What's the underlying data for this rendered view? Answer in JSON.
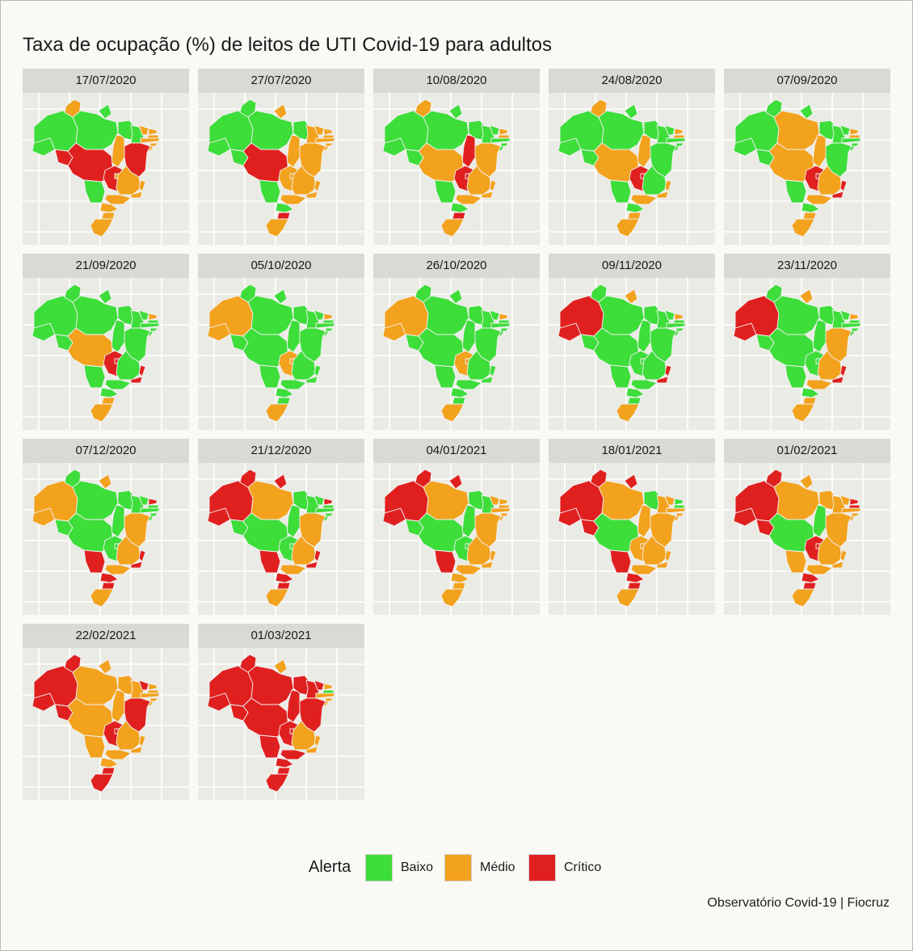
{
  "title": "Taxa de ocupação (%) de leitos de UTI Covid-19 para adultos",
  "caption": "Observatório Covid-19 | Fiocruz",
  "legend": {
    "title": "Alerta",
    "items": [
      {
        "label": "Baixo",
        "color": "#3ddd3a"
      },
      {
        "label": "Médio",
        "color": "#f3a21d"
      },
      {
        "label": "Crítico",
        "color": "#e0201f"
      }
    ]
  },
  "colors": {
    "baixo": "#3ddd3a",
    "medio": "#f3a21d",
    "critico": "#e0201f",
    "panel_bg": "#ebebe6",
    "strip_bg": "#d9d9d5",
    "grid": "#ffffff"
  },
  "panels": [
    {
      "date": "17/07/2020",
      "states": {
        "AC": "baixo",
        "AM": "baixo",
        "RR": "medio",
        "AP": "baixo",
        "PA": "baixo",
        "TO": "medio",
        "MA": "baixo",
        "PI": "baixo",
        "CE": "medio",
        "RN": "medio",
        "PB": "medio",
        "PE": "medio",
        "AL": "medio",
        "SE": "medio",
        "BA": "critico",
        "RO": "critico",
        "MT": "critico",
        "MS": "baixo",
        "GO": "critico",
        "DF": "medio",
        "MG": "medio",
        "ES": "medio",
        "RJ": "medio",
        "SP": "medio",
        "PR": "medio",
        "SC": "medio",
        "RS": "medio"
      }
    },
    {
      "date": "27/07/2020",
      "states": {
        "AC": "baixo",
        "AM": "baixo",
        "RR": "baixo",
        "AP": "medio",
        "PA": "baixo",
        "TO": "medio",
        "MA": "baixo",
        "PI": "medio",
        "CE": "medio",
        "RN": "medio",
        "PB": "medio",
        "PE": "medio",
        "AL": "medio",
        "SE": "medio",
        "BA": "medio",
        "RO": "baixo",
        "MT": "critico",
        "MS": "baixo",
        "GO": "medio",
        "DF": "medio",
        "MG": "medio",
        "ES": "medio",
        "RJ": "medio",
        "SP": "medio",
        "PR": "baixo",
        "SC": "critico",
        "RS": "medio"
      }
    },
    {
      "date": "10/08/2020",
      "states": {
        "AC": "baixo",
        "AM": "baixo",
        "RR": "medio",
        "AP": "baixo",
        "PA": "baixo",
        "TO": "critico",
        "MA": "baixo",
        "PI": "baixo",
        "CE": "baixo",
        "RN": "medio",
        "PB": "medio",
        "PE": "baixo",
        "AL": "baixo",
        "SE": "baixo",
        "BA": "medio",
        "RO": "baixo",
        "MT": "medio",
        "MS": "baixo",
        "GO": "critico",
        "DF": "critico",
        "MG": "medio",
        "ES": "medio",
        "RJ": "medio",
        "SP": "medio",
        "PR": "baixo",
        "SC": "critico",
        "RS": "medio"
      }
    },
    {
      "date": "24/08/2020",
      "states": {
        "AC": "baixo",
        "AM": "baixo",
        "RR": "medio",
        "AP": "baixo",
        "PA": "baixo",
        "TO": "medio",
        "MA": "baixo",
        "PI": "baixo",
        "CE": "baixo",
        "RN": "medio",
        "PB": "medio",
        "PE": "baixo",
        "AL": "baixo",
        "SE": "baixo",
        "BA": "baixo",
        "RO": "baixo",
        "MT": "medio",
        "MS": "baixo",
        "GO": "critico",
        "DF": "critico",
        "MG": "baixo",
        "ES": "medio",
        "RJ": "medio",
        "SP": "medio",
        "PR": "baixo",
        "SC": "medio",
        "RS": "medio"
      }
    },
    {
      "date": "07/09/2020",
      "states": {
        "AC": "baixo",
        "AM": "baixo",
        "RR": "baixo",
        "AP": "baixo",
        "PA": "medio",
        "TO": "medio",
        "MA": "baixo",
        "PI": "baixo",
        "CE": "baixo",
        "RN": "medio",
        "PB": "medio",
        "PE": "baixo",
        "AL": "baixo",
        "SE": "baixo",
        "BA": "baixo",
        "RO": "baixo",
        "MT": "medio",
        "MS": "baixo",
        "GO": "critico",
        "DF": "critico",
        "MG": "medio",
        "ES": "critico",
        "RJ": "critico",
        "SP": "medio",
        "PR": "baixo",
        "SC": "medio",
        "RS": "medio"
      }
    },
    {
      "date": "21/09/2020",
      "states": {
        "AC": "baixo",
        "AM": "baixo",
        "RR": "baixo",
        "AP": "baixo",
        "PA": "baixo",
        "TO": "baixo",
        "MA": "baixo",
        "PI": "baixo",
        "CE": "baixo",
        "RN": "medio",
        "PB": "baixo",
        "PE": "baixo",
        "AL": "baixo",
        "SE": "baixo",
        "BA": "baixo",
        "RO": "baixo",
        "MT": "medio",
        "MS": "baixo",
        "GO": "critico",
        "DF": "critico",
        "MG": "baixo",
        "ES": "critico",
        "RJ": "critico",
        "SP": "baixo",
        "PR": "baixo",
        "SC": "medio",
        "RS": "medio"
      }
    },
    {
      "date": "05/10/2020",
      "states": {
        "AC": "medio",
        "AM": "medio",
        "RR": "baixo",
        "AP": "baixo",
        "PA": "baixo",
        "TO": "baixo",
        "MA": "baixo",
        "PI": "baixo",
        "CE": "baixo",
        "RN": "medio",
        "PB": "baixo",
        "PE": "baixo",
        "AL": "baixo",
        "SE": "baixo",
        "BA": "baixo",
        "RO": "baixo",
        "MT": "baixo",
        "MS": "baixo",
        "GO": "medio",
        "DF": "medio",
        "MG": "baixo",
        "ES": "baixo",
        "RJ": "baixo",
        "SP": "baixo",
        "PR": "baixo",
        "SC": "baixo",
        "RS": "medio"
      }
    },
    {
      "date": "26/10/2020",
      "states": {
        "AC": "medio",
        "AM": "medio",
        "RR": "baixo",
        "AP": "baixo",
        "PA": "baixo",
        "TO": "baixo",
        "MA": "baixo",
        "PI": "baixo",
        "CE": "baixo",
        "RN": "medio",
        "PB": "baixo",
        "PE": "baixo",
        "AL": "baixo",
        "SE": "baixo",
        "BA": "baixo",
        "RO": "baixo",
        "MT": "baixo",
        "MS": "baixo",
        "GO": "medio",
        "DF": "medio",
        "MG": "baixo",
        "ES": "baixo",
        "RJ": "baixo",
        "SP": "baixo",
        "PR": "baixo",
        "SC": "baixo",
        "RS": "medio"
      }
    },
    {
      "date": "09/11/2020",
      "states": {
        "AC": "critico",
        "AM": "critico",
        "RR": "baixo",
        "AP": "medio",
        "PA": "baixo",
        "TO": "baixo",
        "MA": "baixo",
        "PI": "baixo",
        "CE": "baixo",
        "RN": "medio",
        "PB": "baixo",
        "PE": "baixo",
        "AL": "baixo",
        "SE": "baixo",
        "BA": "baixo",
        "RO": "baixo",
        "MT": "baixo",
        "MS": "baixo",
        "GO": "baixo",
        "DF": "baixo",
        "MG": "baixo",
        "ES": "critico",
        "RJ": "critico",
        "SP": "baixo",
        "PR": "baixo",
        "SC": "baixo",
        "RS": "medio"
      }
    },
    {
      "date": "23/11/2020",
      "states": {
        "AC": "critico",
        "AM": "critico",
        "RR": "baixo",
        "AP": "medio",
        "PA": "baixo",
        "TO": "baixo",
        "MA": "baixo",
        "PI": "baixo",
        "CE": "baixo",
        "RN": "medio",
        "PB": "baixo",
        "PE": "baixo",
        "AL": "baixo",
        "SE": "baixo",
        "BA": "medio",
        "RO": "baixo",
        "MT": "baixo",
        "MS": "baixo",
        "GO": "baixo",
        "DF": "baixo",
        "MG": "medio",
        "ES": "critico",
        "RJ": "critico",
        "SP": "medio",
        "PR": "baixo",
        "SC": "medio",
        "RS": "medio"
      }
    },
    {
      "date": "07/12/2020",
      "states": {
        "AC": "medio",
        "AM": "medio",
        "RR": "baixo",
        "AP": "medio",
        "PA": "baixo",
        "TO": "baixo",
        "MA": "baixo",
        "PI": "baixo",
        "CE": "baixo",
        "RN": "critico",
        "PB": "baixo",
        "PE": "baixo",
        "AL": "baixo",
        "SE": "baixo",
        "BA": "medio",
        "RO": "baixo",
        "MT": "baixo",
        "MS": "critico",
        "GO": "baixo",
        "DF": "baixo",
        "MG": "medio",
        "ES": "critico",
        "RJ": "critico",
        "SP": "medio",
        "PR": "critico",
        "SC": "critico",
        "RS": "medio"
      }
    },
    {
      "date": "21/12/2020",
      "states": {
        "AC": "critico",
        "AM": "critico",
        "RR": "critico",
        "AP": "critico",
        "PA": "medio",
        "TO": "baixo",
        "MA": "baixo",
        "PI": "baixo",
        "CE": "baixo",
        "RN": "critico",
        "PB": "baixo",
        "PE": "baixo",
        "AL": "baixo",
        "SE": "baixo",
        "BA": "medio",
        "RO": "baixo",
        "MT": "baixo",
        "MS": "critico",
        "GO": "baixo",
        "DF": "baixo",
        "MG": "medio",
        "ES": "critico",
        "RJ": "critico",
        "SP": "medio",
        "PR": "critico",
        "SC": "critico",
        "RS": "medio"
      }
    },
    {
      "date": "04/01/2021",
      "states": {
        "AC": "critico",
        "AM": "critico",
        "RR": "critico",
        "AP": "critico",
        "PA": "medio",
        "TO": "baixo",
        "MA": "baixo",
        "PI": "baixo",
        "CE": "medio",
        "RN": "medio",
        "PB": "medio",
        "PE": "medio",
        "AL": "medio",
        "SE": "medio",
        "BA": "medio",
        "RO": "baixo",
        "MT": "baixo",
        "MS": "critico",
        "GO": "baixo",
        "DF": "baixo",
        "MG": "medio",
        "ES": "medio",
        "RJ": "medio",
        "SP": "medio",
        "PR": "medio",
        "SC": "medio",
        "RS": "medio"
      }
    },
    {
      "date": "18/01/2021",
      "states": {
        "AC": "critico",
        "AM": "critico",
        "RR": "critico",
        "AP": "critico",
        "PA": "medio",
        "TO": "medio",
        "MA": "baixo",
        "PI": "medio",
        "CE": "medio",
        "RN": "baixo",
        "PB": "baixo",
        "PE": "medio",
        "AL": "medio",
        "SE": "medio",
        "BA": "medio",
        "RO": "critico",
        "MT": "baixo",
        "MS": "critico",
        "GO": "medio",
        "DF": "medio",
        "MG": "medio",
        "ES": "medio",
        "RJ": "medio",
        "SP": "medio",
        "PR": "critico",
        "SC": "critico",
        "RS": "medio"
      }
    },
    {
      "date": "01/02/2021",
      "states": {
        "AC": "critico",
        "AM": "critico",
        "RR": "critico",
        "AP": "medio",
        "PA": "medio",
        "TO": "baixo",
        "MA": "medio",
        "PI": "medio",
        "CE": "medio",
        "RN": "critico",
        "PB": "critico",
        "PE": "medio",
        "AL": "medio",
        "SE": "medio",
        "BA": "medio",
        "RO": "critico",
        "MT": "baixo",
        "MS": "medio",
        "GO": "critico",
        "DF": "critico",
        "MG": "medio",
        "ES": "medio",
        "RJ": "medio",
        "SP": "medio",
        "PR": "critico",
        "SC": "critico",
        "RS": "medio"
      }
    },
    {
      "date": "22/02/2021",
      "states": {
        "AC": "critico",
        "AM": "critico",
        "RR": "critico",
        "AP": "medio",
        "PA": "medio",
        "TO": "medio",
        "MA": "medio",
        "PI": "medio",
        "CE": "critico",
        "RN": "medio",
        "PB": "medio",
        "PE": "medio",
        "AL": "medio",
        "SE": "medio",
        "BA": "critico",
        "RO": "critico",
        "MT": "medio",
        "MS": "medio",
        "GO": "critico",
        "DF": "critico",
        "MG": "medio",
        "ES": "medio",
        "RJ": "medio",
        "SP": "medio",
        "PR": "medio",
        "SC": "critico",
        "RS": "critico"
      }
    },
    {
      "date": "01/03/2021",
      "states": {
        "AC": "critico",
        "AM": "critico",
        "RR": "critico",
        "AP": "medio",
        "PA": "critico",
        "TO": "critico",
        "MA": "critico",
        "PI": "critico",
        "CE": "critico",
        "RN": "medio",
        "PB": "baixo",
        "PE": "medio",
        "AL": "medio",
        "SE": "medio",
        "BA": "critico",
        "RO": "critico",
        "MT": "critico",
        "MS": "critico",
        "GO": "critico",
        "DF": "critico",
        "MG": "medio",
        "ES": "medio",
        "RJ": "medio",
        "SP": "critico",
        "PR": "critico",
        "SC": "critico",
        "RS": "critico"
      }
    }
  ]
}
